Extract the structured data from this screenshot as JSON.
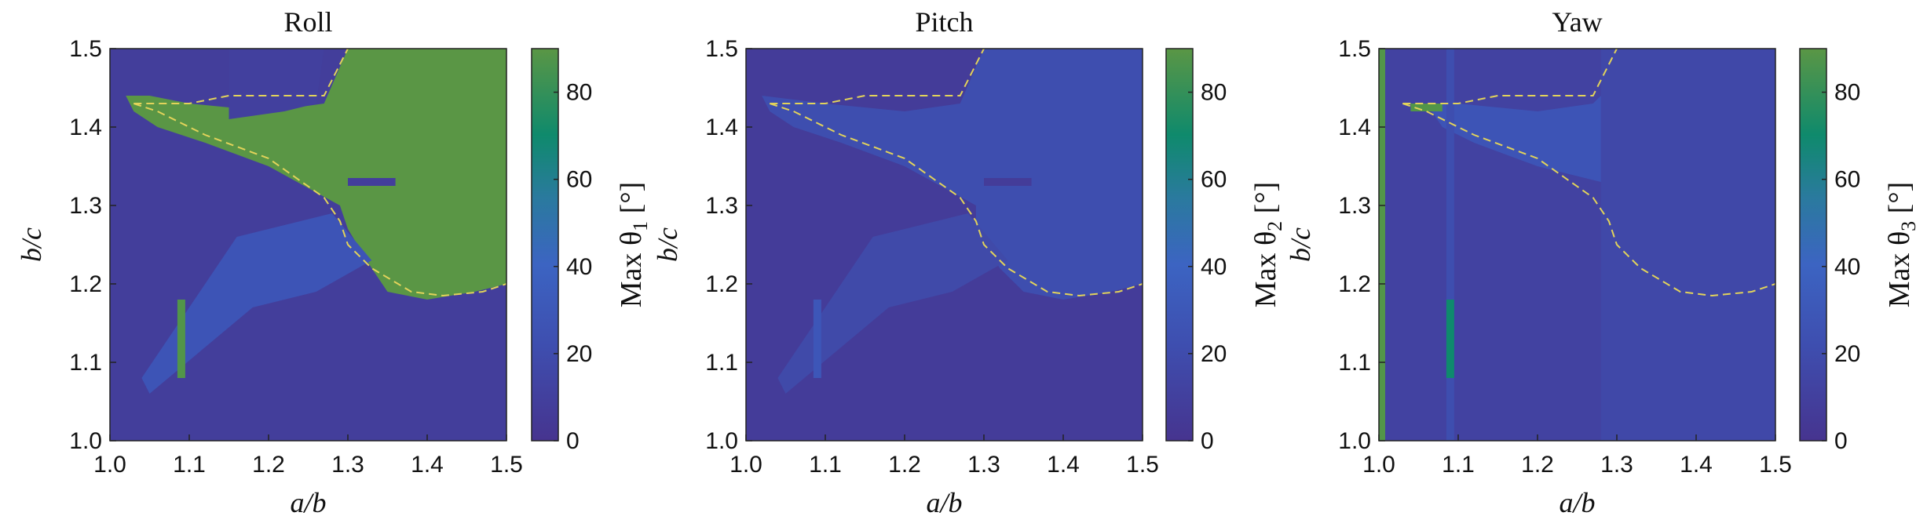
{
  "colors": {
    "low": "#46348f",
    "mid": "#3c60c2",
    "high": "#0f8a6c",
    "max": "#5a9645",
    "contour": "#e2d35a"
  },
  "chart_data": [
    {
      "type": "heatmap",
      "title": "Roll",
      "xlabel": "a/b",
      "ylabel": "b/c",
      "colorbar_label": "Max θ1 [°]",
      "colorbar_label_parts": {
        "prefix": "Max θ",
        "sub": "1",
        "suffix": " [°]"
      },
      "xlim": [
        1.0,
        1.5
      ],
      "ylim": [
        1.0,
        1.5
      ],
      "clim": [
        0,
        90
      ],
      "xticks": [
        "1.0",
        "1.1",
        "1.2",
        "1.3",
        "1.4",
        "1.5"
      ],
      "yticks": [
        "1.0",
        "1.1",
        "1.2",
        "1.3",
        "1.4",
        "1.5"
      ],
      "cticks": [
        "0",
        "20",
        "40",
        "60",
        "80"
      ],
      "background_value": 8,
      "regions": [
        {
          "polygon": [
            [
              1.02,
              1.44
            ],
            [
              1.05,
              1.44
            ],
            [
              1.1,
              1.43
            ],
            [
              1.2,
              1.42
            ],
            [
              1.27,
              1.43
            ],
            [
              1.3,
              1.5
            ],
            [
              1.5,
              1.5
            ],
            [
              1.5,
              1.2
            ],
            [
              1.46,
              1.19
            ],
            [
              1.4,
              1.18
            ],
            [
              1.35,
              1.19
            ],
            [
              1.33,
              1.22
            ],
            [
              1.3,
              1.27
            ],
            [
              1.29,
              1.3
            ],
            [
              1.2,
              1.35
            ],
            [
              1.12,
              1.38
            ],
            [
              1.06,
              1.4
            ],
            [
              1.03,
              1.42
            ]
          ],
          "value": 90
        },
        {
          "polygon": [
            [
              1.16,
              1.26
            ],
            [
              1.28,
              1.29
            ],
            [
              1.33,
              1.23
            ],
            [
              1.26,
              1.19
            ],
            [
              1.18,
              1.17
            ],
            [
              1.05,
              1.06
            ],
            [
              1.04,
              1.08
            ]
          ],
          "value": 28
        },
        {
          "polygon": [
            [
              1.15,
              1.41
            ],
            [
              1.22,
              1.42
            ],
            [
              1.26,
              1.43
            ],
            [
              1.27,
              1.5
            ],
            [
              1.15,
              1.5
            ]
          ],
          "value": 10
        }
      ],
      "lines": [
        {
          "from": [
            1.3,
            1.33
          ],
          "to": [
            1.36,
            1.33
          ],
          "value": 8
        },
        {
          "from": [
            1.09,
            1.08
          ],
          "to": [
            1.09,
            1.18
          ],
          "value": 88
        }
      ],
      "contour": [
        [
          1.03,
          1.43
        ],
        [
          1.06,
          1.42
        ],
        [
          1.12,
          1.39
        ],
        [
          1.2,
          1.36
        ],
        [
          1.27,
          1.31
        ],
        [
          1.29,
          1.28
        ],
        [
          1.3,
          1.25
        ],
        [
          1.33,
          1.22
        ],
        [
          1.38,
          1.19
        ],
        [
          1.42,
          1.185
        ],
        [
          1.47,
          1.19
        ],
        [
          1.5,
          1.2
        ]
      ],
      "contour_upper": [
        [
          1.03,
          1.43
        ],
        [
          1.1,
          1.43
        ],
        [
          1.15,
          1.44
        ],
        [
          1.27,
          1.44
        ],
        [
          1.3,
          1.5
        ]
      ]
    },
    {
      "type": "heatmap",
      "title": "Pitch",
      "xlabel": "a/b",
      "ylabel": "b/c",
      "colorbar_label": "Max θ2 [°]",
      "colorbar_label_parts": {
        "prefix": "Max θ",
        "sub": "2",
        "suffix": " [°]"
      },
      "xlim": [
        1.0,
        1.5
      ],
      "ylim": [
        1.0,
        1.5
      ],
      "clim": [
        0,
        90
      ],
      "xticks": [
        "1.0",
        "1.1",
        "1.2",
        "1.3",
        "1.4",
        "1.5"
      ],
      "yticks": [
        "1.0",
        "1.1",
        "1.2",
        "1.3",
        "1.4",
        "1.5"
      ],
      "cticks": [
        "0",
        "20",
        "40",
        "60",
        "80"
      ],
      "background_value": 7,
      "regions": [
        {
          "polygon": [
            [
              1.02,
              1.44
            ],
            [
              1.1,
              1.43
            ],
            [
              1.2,
              1.42
            ],
            [
              1.27,
              1.43
            ],
            [
              1.3,
              1.5
            ],
            [
              1.5,
              1.5
            ],
            [
              1.5,
              1.2
            ],
            [
              1.46,
              1.19
            ],
            [
              1.4,
              1.18
            ],
            [
              1.35,
              1.19
            ],
            [
              1.32,
              1.22
            ],
            [
              1.29,
              1.27
            ],
            [
              1.29,
              1.3
            ],
            [
              1.2,
              1.35
            ],
            [
              1.12,
              1.38
            ],
            [
              1.06,
              1.4
            ],
            [
              1.03,
              1.42
            ]
          ],
          "value": 22
        },
        {
          "polygon": [
            [
              1.16,
              1.26
            ],
            [
              1.28,
              1.29
            ],
            [
              1.33,
              1.23
            ],
            [
              1.26,
              1.19
            ],
            [
              1.18,
              1.17
            ],
            [
              1.05,
              1.06
            ],
            [
              1.04,
              1.08
            ]
          ],
          "value": 18
        }
      ],
      "lines": [
        {
          "from": [
            1.3,
            1.33
          ],
          "to": [
            1.36,
            1.33
          ],
          "value": 7
        },
        {
          "from": [
            1.09,
            1.08
          ],
          "to": [
            1.09,
            1.18
          ],
          "value": 30
        }
      ],
      "contour": [
        [
          1.03,
          1.43
        ],
        [
          1.06,
          1.42
        ],
        [
          1.12,
          1.39
        ],
        [
          1.2,
          1.36
        ],
        [
          1.27,
          1.31
        ],
        [
          1.29,
          1.28
        ],
        [
          1.3,
          1.25
        ],
        [
          1.33,
          1.22
        ],
        [
          1.38,
          1.19
        ],
        [
          1.42,
          1.185
        ],
        [
          1.47,
          1.19
        ],
        [
          1.5,
          1.2
        ]
      ],
      "contour_upper": [
        [
          1.03,
          1.43
        ],
        [
          1.1,
          1.43
        ],
        [
          1.15,
          1.44
        ],
        [
          1.27,
          1.44
        ],
        [
          1.3,
          1.5
        ]
      ]
    },
    {
      "type": "heatmap",
      "title": "Yaw",
      "xlabel": "a/b",
      "ylabel": "b/c",
      "colorbar_label": "Max θ3 [°]",
      "colorbar_label_parts": {
        "prefix": "Max θ",
        "sub": "3",
        "suffix": " [°]"
      },
      "xlim": [
        1.0,
        1.5
      ],
      "ylim": [
        1.0,
        1.5
      ],
      "clim": [
        0,
        90
      ],
      "xticks": [
        "1.0",
        "1.1",
        "1.2",
        "1.3",
        "1.4",
        "1.5"
      ],
      "yticks": [
        "1.0",
        "1.1",
        "1.2",
        "1.3",
        "1.4",
        "1.5"
      ],
      "cticks": [
        "0",
        "20",
        "40",
        "60",
        "80"
      ],
      "background_value": 12,
      "regions": [
        {
          "polygon": [
            [
              1.28,
              1.5
            ],
            [
              1.5,
              1.5
            ],
            [
              1.5,
              1.0
            ],
            [
              1.28,
              1.0
            ]
          ],
          "value": 17
        },
        {
          "polygon": [
            [
              1.06,
              1.43
            ],
            [
              1.1,
              1.43
            ],
            [
              1.2,
              1.42
            ],
            [
              1.27,
              1.43
            ],
            [
              1.28,
              1.44
            ],
            [
              1.28,
              1.33
            ],
            [
              1.2,
              1.35
            ],
            [
              1.12,
              1.38
            ],
            [
              1.08,
              1.4
            ]
          ],
          "value": 28
        }
      ],
      "lines": [
        {
          "from": [
            1.003,
            1.0
          ],
          "to": [
            1.003,
            1.5
          ],
          "value": 88
        },
        {
          "from": [
            1.09,
            1.0
          ],
          "to": [
            1.09,
            1.5
          ],
          "value": 22
        },
        {
          "from": [
            1.09,
            1.08
          ],
          "to": [
            1.09,
            1.18
          ],
          "value": 70
        },
        {
          "from": [
            1.04,
            1.425
          ],
          "to": [
            1.08,
            1.425
          ],
          "value": 88
        }
      ],
      "contour": [
        [
          1.03,
          1.43
        ],
        [
          1.06,
          1.42
        ],
        [
          1.12,
          1.39
        ],
        [
          1.2,
          1.36
        ],
        [
          1.27,
          1.31
        ],
        [
          1.29,
          1.28
        ],
        [
          1.3,
          1.25
        ],
        [
          1.33,
          1.22
        ],
        [
          1.38,
          1.19
        ],
        [
          1.42,
          1.185
        ],
        [
          1.47,
          1.19
        ],
        [
          1.5,
          1.2
        ]
      ],
      "contour_upper": [
        [
          1.03,
          1.43
        ],
        [
          1.1,
          1.43
        ],
        [
          1.15,
          1.44
        ],
        [
          1.27,
          1.44
        ],
        [
          1.3,
          1.5
        ]
      ]
    }
  ]
}
